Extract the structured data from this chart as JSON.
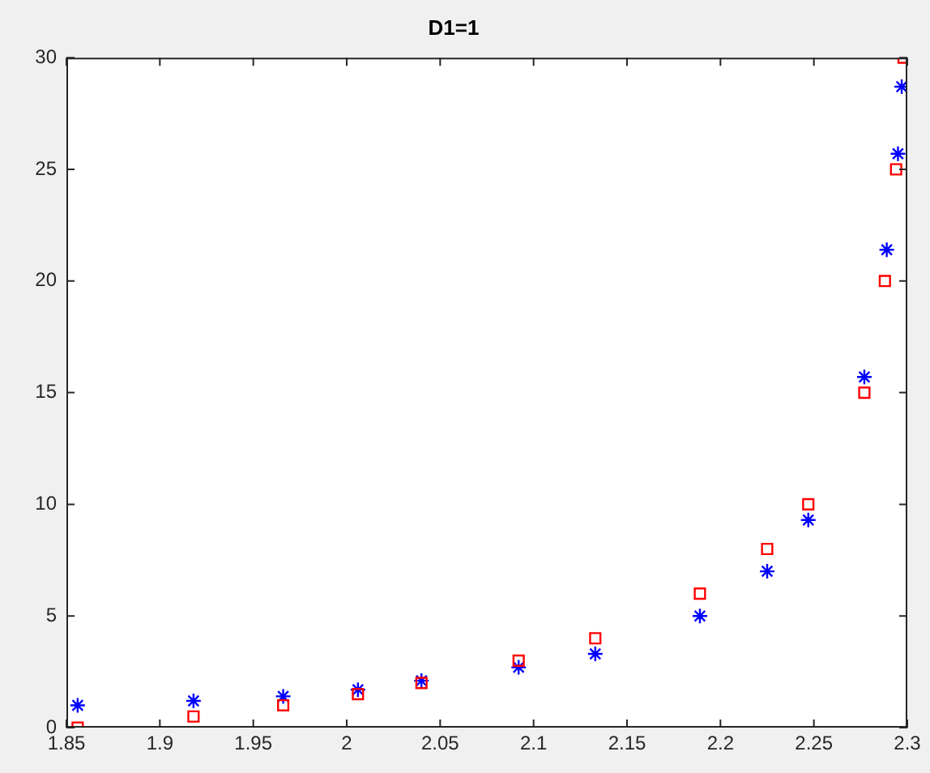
{
  "chart_data": {
    "type": "scatter",
    "title": "D1=1",
    "xlim": [
      1.85,
      2.3
    ],
    "xticks": [
      1.85,
      1.9,
      1.95,
      2,
      2.05,
      2.1,
      2.15,
      2.2,
      2.25,
      2.3
    ],
    "ylim": [
      0,
      30
    ],
    "yticks": [
      0,
      5,
      10,
      15,
      20,
      25,
      30
    ],
    "grid": false,
    "legend": false,
    "series": [
      {
        "color": "#ff0000",
        "marker": "square",
        "x": [
          1.856,
          1.918,
          1.966,
          2.006,
          2.04,
          2.092,
          2.133,
          2.189,
          2.225,
          2.247,
          2.277,
          2.288,
          2.294,
          2.298
        ],
        "values": [
          0,
          0.5,
          1,
          1.5,
          2,
          3,
          4,
          6,
          8,
          10,
          15,
          20,
          25,
          30
        ]
      },
      {
        "color": "#0000ff",
        "marker": "cross",
        "x": [
          1.856,
          1.918,
          1.966,
          2.006,
          2.04,
          2.092,
          2.133,
          2.189,
          2.225,
          2.247,
          2.277,
          2.289,
          2.295,
          2.297
        ],
        "values": [
          1,
          1.2,
          1.4,
          1.7,
          2.1,
          2.7,
          3.3,
          5,
          7,
          9.3,
          15.7,
          21.4,
          25.7,
          28.7
        ]
      }
    ]
  }
}
